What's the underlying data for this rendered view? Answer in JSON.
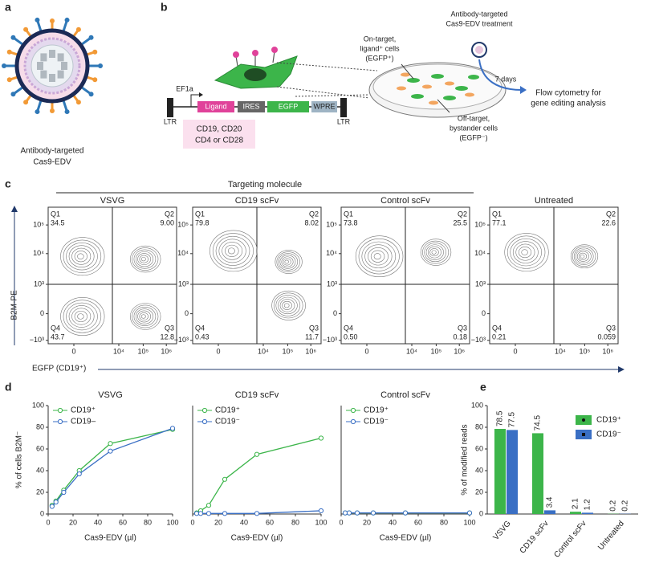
{
  "panel_labels": [
    "a",
    "b",
    "c",
    "d",
    "e"
  ],
  "panel_a": {
    "caption": [
      "Antibody-targeted",
      "Cas9-EDV"
    ]
  },
  "panel_b": {
    "construct": [
      "LTR",
      "EF1a",
      "Ligand",
      "IRES",
      "EGFP",
      "WPRE",
      "LTR"
    ],
    "ligand_options": [
      "CD19, CD20",
      "CD4 or CD28"
    ],
    "on_target": [
      "On-target,",
      "ligand⁺ cells",
      "(EGFP⁺)"
    ],
    "off_target": [
      "Off-target,",
      "bystander cells",
      "(EGFP⁻)"
    ],
    "treatment": [
      "Antibody-targeted",
      "Cas9-EDV treatment"
    ],
    "duration": "7 days",
    "readout": [
      "Flow cytometry for",
      "gene editing analysis"
    ]
  },
  "panel_c": {
    "header": "Targeting molecule",
    "y_label": "B2M-PE",
    "x_label": "EGFP (CD19⁺)",
    "y_ticks": [
      "10⁵",
      "10⁴",
      "10³",
      "0",
      "−10³"
    ],
    "x_ticks": [
      "0",
      "10⁴",
      "10⁵",
      "10⁶"
    ],
    "plots": [
      {
        "title": "VSVG",
        "quadrants": [
          {
            "name": "Q1",
            "value": "34.5"
          },
          {
            "name": "Q2",
            "value": "9.00"
          },
          {
            "name": "Q3",
            "value": "12.8"
          },
          {
            "name": "Q4",
            "value": "43.7"
          }
        ]
      },
      {
        "title": "CD19 scFv",
        "quadrants": [
          {
            "name": "Q1",
            "value": "79.8"
          },
          {
            "name": "Q2",
            "value": "8.02"
          },
          {
            "name": "Q3",
            "value": "11.7"
          },
          {
            "name": "Q4",
            "value": "0.43"
          }
        ]
      },
      {
        "title": "Control scFv",
        "quadrants": [
          {
            "name": "Q1",
            "value": "73.8"
          },
          {
            "name": "Q2",
            "value": "25.5"
          },
          {
            "name": "Q3",
            "value": "0.18"
          },
          {
            "name": "Q4",
            "value": "0.50"
          }
        ]
      },
      {
        "title": "Untreated",
        "quadrants": [
          {
            "name": "Q1",
            "value": "77.1"
          },
          {
            "name": "Q2",
            "value": "22.6"
          },
          {
            "name": "Q3",
            "value": "0.059"
          },
          {
            "name": "Q4",
            "value": "0.21"
          }
        ]
      }
    ]
  },
  "chart_data": [
    {
      "type": "line",
      "title": "VSVG",
      "xlabel": "Cas9-EDV (µl)",
      "ylabel": "% of cells B2M⁻",
      "x": [
        3.125,
        6.25,
        12.5,
        25,
        50,
        100
      ],
      "series": [
        {
          "name": "CD19⁺",
          "color": "#3cb54a",
          "values": [
            8,
            12,
            22,
            40,
            65,
            78
          ]
        },
        {
          "name": "CD19–",
          "color": "#3a6fc4",
          "values": [
            7,
            11,
            20,
            37,
            58,
            79
          ]
        }
      ],
      "xlim": [
        0,
        100
      ],
      "ylim": [
        0,
        100
      ],
      "xticks": [
        0,
        20,
        40,
        60,
        80,
        100
      ],
      "yticks": [
        0,
        20,
        40,
        60,
        80,
        100
      ],
      "legend": "upper left"
    },
    {
      "type": "line",
      "title": "CD19 scFv",
      "xlabel": "Cas9-EDV (µl)",
      "x": [
        3.125,
        6.25,
        12.5,
        25,
        50,
        100
      ],
      "series": [
        {
          "name": "CD19⁺",
          "color": "#3cb54a",
          "values": [
            1,
            3,
            8,
            32,
            55,
            70
          ]
        },
        {
          "name": "CD19⁻",
          "color": "#3a6fc4",
          "values": [
            0.5,
            0.5,
            0.5,
            0.5,
            0.5,
            3
          ]
        }
      ],
      "xlim": [
        0,
        100
      ],
      "ylim": [
        0,
        100
      ],
      "xticks": [
        0,
        20,
        40,
        60,
        80,
        100
      ],
      "legend": "upper left"
    },
    {
      "type": "line",
      "title": "Control scFv",
      "xlabel": "Cas9-EDV (µl)",
      "x": [
        3.125,
        6.25,
        12.5,
        25,
        50,
        100
      ],
      "series": [
        {
          "name": "CD19⁺",
          "color": "#3cb54a",
          "values": [
            1,
            1,
            1,
            1,
            1,
            1
          ]
        },
        {
          "name": "CD19⁻",
          "color": "#3a6fc4",
          "values": [
            1,
            1,
            1,
            1,
            1,
            1
          ]
        }
      ],
      "xlim": [
        0,
        100
      ],
      "ylim": [
        0,
        100
      ],
      "xticks": [
        0,
        20,
        40,
        60,
        80,
        100
      ],
      "legend": "upper left"
    },
    {
      "type": "bar",
      "ylabel": "% of modified reads",
      "categories": [
        "VSVG",
        "CD19 scFv",
        "Control scFv",
        "Untreated"
      ],
      "series": [
        {
          "name": "CD19⁺",
          "color": "#3cb54a",
          "values": [
            78.5,
            74.5,
            2.1,
            0.2
          ]
        },
        {
          "name": "CD19⁻",
          "color": "#3a6fc4",
          "values": [
            77.5,
            3.4,
            1.2,
            0.2
          ]
        }
      ],
      "ylim": [
        0,
        100
      ],
      "yticks": [
        0,
        20,
        40,
        60,
        80,
        100
      ],
      "legend": "upper right"
    }
  ]
}
